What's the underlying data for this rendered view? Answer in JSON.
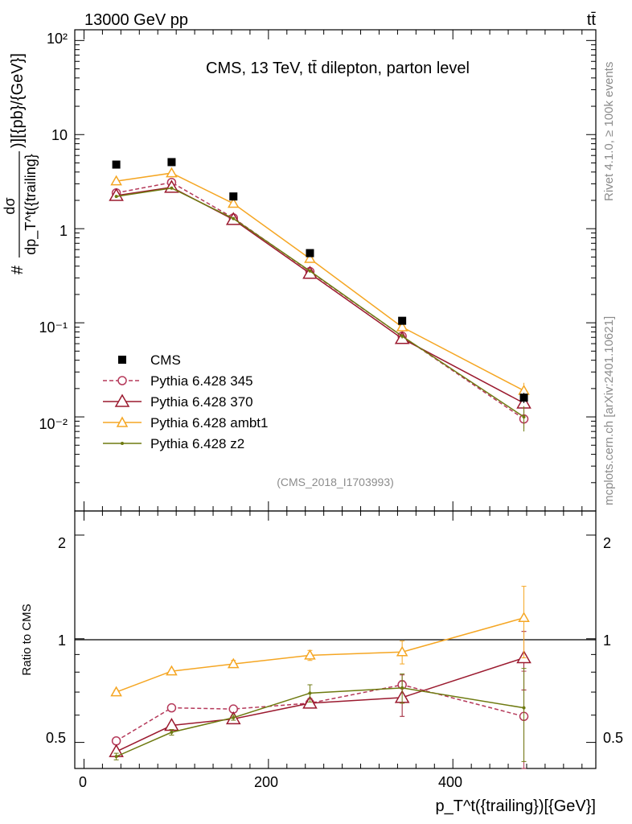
{
  "header": {
    "left": "13000 GeV pp",
    "right": "tt̄"
  },
  "side_labels": {
    "rivet": "Rivet 4.1.0, ≥ 100k events",
    "source": "mcplots.cern.ch [arXiv:2401.10621]"
  },
  "main_panel": {
    "title": "CMS, 13 TeV, tt̄ dilepton, parton level",
    "analysis_tag": "(CMS_2018_I1703993)",
    "ylabel": "# dσ / dp_T^t({trailing}) )][{pb}/{GeV}]",
    "ylabel_parts": {
      "hash": "#",
      "num": "dσ",
      "den": "dp_T^t({trailing}",
      "tail": ")][{pb}/{GeV}]"
    },
    "ytick_labels": [
      "10⁻²",
      "10⁻¹",
      "1",
      "10",
      "10²"
    ]
  },
  "ratio_panel": {
    "ylabel": "Ratio to CMS",
    "ytick_labels": [
      "0.5",
      "1",
      "2"
    ]
  },
  "x_axis": {
    "label": "p_T^t({trailing})[{GeV}]",
    "tick_labels": [
      "0",
      "200",
      "400"
    ]
  },
  "legend": [
    {
      "name": "CMS",
      "color": "#000000"
    },
    {
      "name": "Pythia 6.428 345",
      "color": "#b5395a"
    },
    {
      "name": "Pythia 6.428 370",
      "color": "#9b1a2f"
    },
    {
      "name": "Pythia 6.428 ambt1",
      "color": "#f5a623"
    },
    {
      "name": "Pythia 6.428 z2",
      "color": "#6e7a10"
    }
  ],
  "chart_data": {
    "type": "line",
    "x": [
      35,
      95,
      162,
      245,
      345,
      477
    ],
    "xlim": [
      -10,
      555
    ],
    "main_ylim": [
      0.001,
      130
    ],
    "main_yscale": "log",
    "ratio_ylim": [
      0.42,
      2.35
    ],
    "ratio_yscale": "log",
    "series": [
      {
        "name": "CMS",
        "kind": "data",
        "color": "#000000",
        "marker": "square",
        "values": [
          4.8,
          5.1,
          2.2,
          0.55,
          0.105,
          0.016
        ],
        "errors": [
          0.15,
          0.15,
          0.07,
          0.02,
          0.005,
          0.002
        ]
      },
      {
        "name": "Pythia 6.428 345",
        "kind": "mc",
        "color": "#b5395a",
        "marker": "circle",
        "dash": true,
        "values": [
          2.4,
          3.1,
          1.3,
          0.35,
          0.072,
          0.0095
        ],
        "errors": [
          0.03,
          0.04,
          0.02,
          0.008,
          0.004,
          0.002
        ],
        "ratio": [
          0.505,
          0.63,
          0.625,
          0.65,
          0.735,
          0.595
        ],
        "ratio_errors": [
          0.01,
          0.01,
          0.01,
          0.02,
          0.05,
          0.21
        ]
      },
      {
        "name": "Pythia 6.428 370",
        "kind": "mc",
        "color": "#9b1a2f",
        "marker": "triangle",
        "values": [
          2.25,
          2.75,
          1.25,
          0.335,
          0.068,
          0.014
        ],
        "errors": [
          0.03,
          0.04,
          0.02,
          0.008,
          0.004,
          0.003
        ],
        "ratio": [
          0.47,
          0.56,
          0.585,
          0.65,
          0.675,
          0.88
        ],
        "ratio_errors": [
          0.01,
          0.01,
          0.01,
          0.02,
          0.08,
          0.17
        ]
      },
      {
        "name": "Pythia 6.428 ambt1",
        "kind": "mc",
        "color": "#f5a623",
        "marker": "triangle",
        "values": [
          3.2,
          3.9,
          1.85,
          0.48,
          0.09,
          0.019
        ],
        "errors": [
          0.04,
          0.05,
          0.03,
          0.01,
          0.005,
          0.004
        ],
        "ratio": [
          0.7,
          0.805,
          0.845,
          0.895,
          0.915,
          1.15
        ],
        "ratio_errors": [
          0.01,
          0.01,
          0.02,
          0.03,
          0.07,
          0.27
        ]
      },
      {
        "name": "Pythia 6.428 z2",
        "kind": "mc",
        "color": "#6e7a10",
        "marker": "dot",
        "values": [
          2.2,
          2.7,
          1.28,
          0.355,
          0.072,
          0.01
        ],
        "errors": [
          0.03,
          0.04,
          0.02,
          0.008,
          0.004,
          0.003
        ],
        "ratio": [
          0.455,
          0.535,
          0.59,
          0.695,
          0.72,
          0.63
        ],
        "ratio_errors": [
          0.01,
          0.01,
          0.01,
          0.04,
          0.07,
          0.19
        ]
      }
    ]
  }
}
